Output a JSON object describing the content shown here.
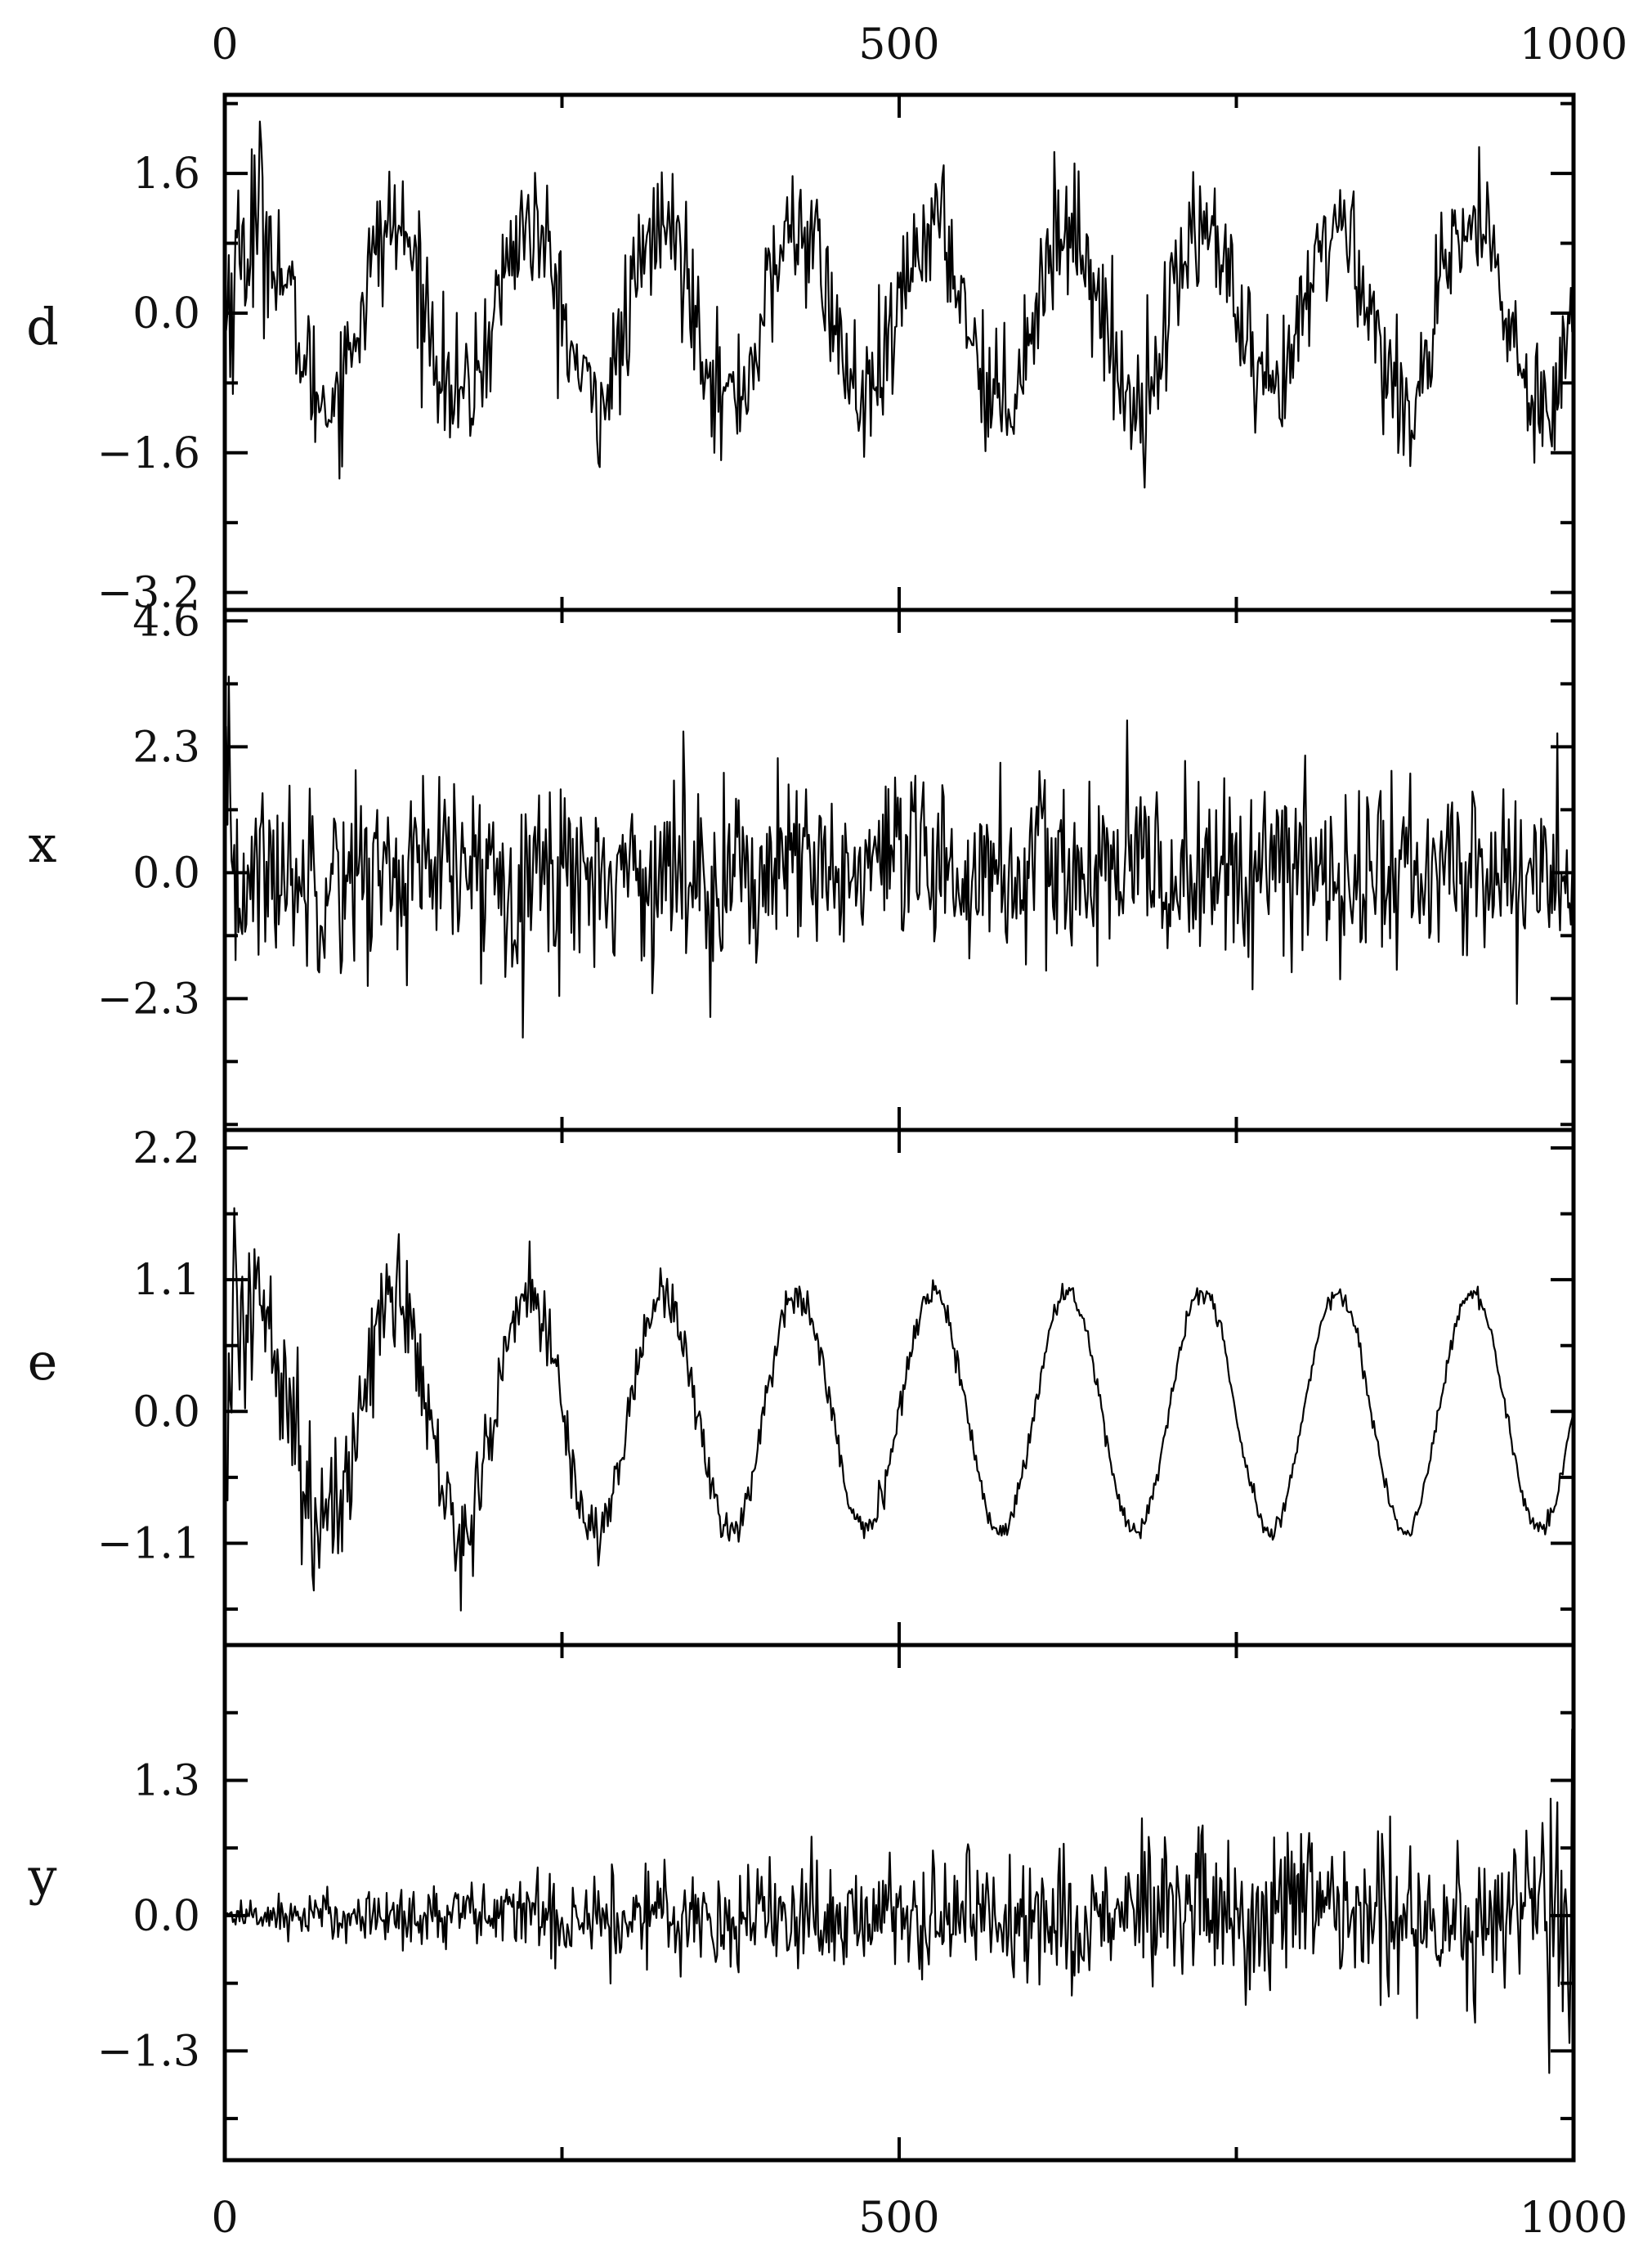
{
  "chart_data": [
    {
      "type": "line",
      "panel": "d",
      "ylabel": "d",
      "xlim": [
        0,
        1000
      ],
      "ylim": [
        -3.4,
        2.5
      ],
      "yticks": [
        1.6,
        0.0,
        -1.6,
        -3.2
      ],
      "ytick_labels": [
        "1.6",
        "0.0",
        "−1.6",
        "−3.2"
      ],
      "xticks": [
        0,
        500,
        1000
      ],
      "xtick_labels": [
        "0",
        "500",
        "1000"
      ],
      "grid": false,
      "signal": {
        "kind": "noisy-sine",
        "period": 100,
        "amplitude": 1.0,
        "noise_std": 0.38,
        "start_transient": true
      },
      "series": [
        {
          "x": [
            0,
            25,
            50,
            75,
            100,
            125,
            150,
            175,
            200,
            225,
            250,
            275,
            300,
            325,
            350,
            375,
            400,
            425,
            450,
            475,
            500,
            525,
            550,
            575,
            600,
            625,
            650,
            675,
            700,
            725,
            750,
            775,
            800,
            825,
            850,
            875,
            900,
            925,
            950,
            975,
            1000
          ],
          "y": [
            0.0,
            1.0,
            0.0,
            -1.0,
            0.0,
            1.0,
            0.0,
            -1.0,
            0.0,
            1.0,
            0.0,
            -1.0,
            0.0,
            1.0,
            0.0,
            -1.0,
            0.0,
            1.0,
            0.0,
            -1.0,
            0.0,
            1.0,
            0.0,
            -1.0,
            0.0,
            1.0,
            0.0,
            -1.0,
            0.0,
            1.0,
            0.0,
            -1.0,
            0.0,
            1.0,
            0.0,
            -1.0,
            0.0,
            1.0,
            0.0,
            -1.0,
            0.0
          ]
        }
      ]
    },
    {
      "type": "line",
      "panel": "x",
      "ylabel": "x",
      "xlim": [
        0,
        1000
      ],
      "ylim": [
        -4.7,
        4.8
      ],
      "yticks": [
        4.6,
        2.3,
        0.0,
        -2.3
      ],
      "ytick_labels": [
        "4.6",
        "2.3",
        "0.0",
        "−2.3"
      ],
      "xticks": [
        0,
        500,
        1000
      ],
      "grid": false,
      "signal": {
        "kind": "noise",
        "noise_std": 0.85
      },
      "series": [
        {
          "x": [
            0,
            100,
            200,
            300,
            400,
            500,
            600,
            700,
            800,
            900,
            1000
          ],
          "y": [
            0.0,
            0.0,
            0.0,
            0.0,
            0.0,
            0.0,
            0.0,
            0.0,
            0.0,
            0.0,
            0.0
          ]
        }
      ]
    },
    {
      "type": "line",
      "panel": "e",
      "ylabel": "e",
      "xlim": [
        0,
        1000
      ],
      "ylim": [
        -1.95,
        2.35
      ],
      "yticks": [
        2.2,
        1.1,
        0.0,
        -1.1
      ],
      "ytick_labels": [
        "2.2",
        "1.1",
        "0.0",
        "−1.1"
      ],
      "xticks": [
        0,
        500,
        1000
      ],
      "grid": false,
      "signal": {
        "kind": "noisy-sine-decaying-noise",
        "period": 100,
        "amplitude": 1.0,
        "noise_std_start": 0.45,
        "noise_std_end": 0.03
      },
      "series": [
        {
          "x": [
            0,
            25,
            50,
            75,
            100,
            125,
            150,
            175,
            200,
            225,
            250,
            275,
            300,
            325,
            350,
            375,
            400,
            425,
            450,
            475,
            500,
            525,
            550,
            575,
            600,
            625,
            650,
            675,
            700,
            725,
            750,
            775,
            800,
            825,
            850,
            875,
            900,
            925,
            950,
            975,
            1000
          ],
          "y": [
            0.0,
            1.0,
            0.0,
            -1.0,
            0.0,
            1.0,
            0.0,
            -1.0,
            0.0,
            1.0,
            0.0,
            -1.0,
            0.0,
            1.0,
            0.0,
            -1.0,
            0.0,
            1.0,
            0.0,
            -1.0,
            0.0,
            1.0,
            0.0,
            -1.0,
            0.0,
            1.0,
            0.0,
            -1.0,
            0.0,
            1.0,
            0.0,
            -1.0,
            0.0,
            1.0,
            0.0,
            -1.0,
            0.0,
            1.0,
            0.0,
            -1.0,
            0.0
          ]
        }
      ]
    },
    {
      "type": "line",
      "panel": "y",
      "ylabel": "y",
      "xlim": [
        0,
        1000
      ],
      "ylim": [
        -2.35,
        2.6
      ],
      "yticks": [
        1.3,
        0.0,
        -1.3
      ],
      "ytick_labels": [
        "1.3",
        "0.0",
        "−1.3"
      ],
      "xticks": [
        0,
        500,
        1000
      ],
      "xtick_labels": [
        "0",
        "500",
        "1000"
      ],
      "grid": false,
      "signal": {
        "kind": "growing-noise",
        "noise_std_start": 0.03,
        "noise_std_end": 0.45
      },
      "series": [
        {
          "x": [
            0,
            100,
            200,
            300,
            400,
            500,
            600,
            700,
            800,
            900,
            1000
          ],
          "y": [
            0.0,
            0.0,
            0.0,
            0.0,
            0.0,
            0.0,
            0.0,
            0.0,
            0.0,
            0.0,
            0.0
          ]
        }
      ]
    }
  ],
  "colors": {
    "line": "#000000",
    "axes": "#000000",
    "background": "#ffffff"
  }
}
